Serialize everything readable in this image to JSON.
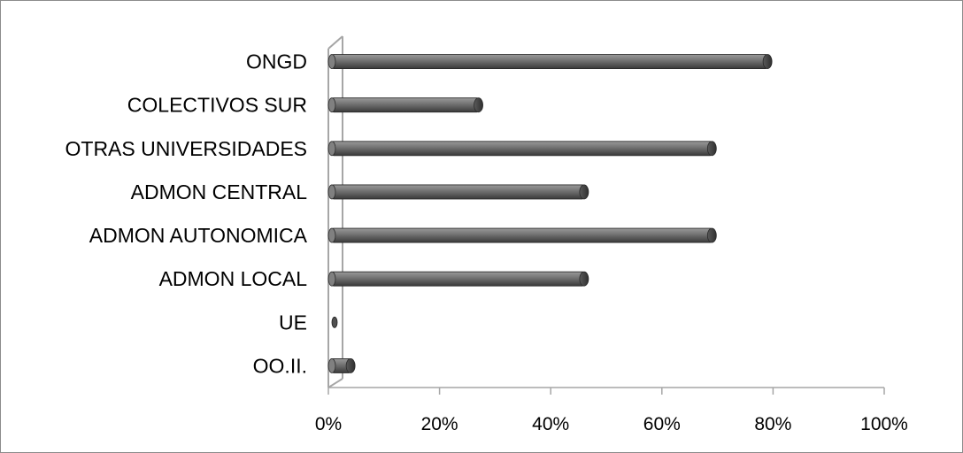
{
  "chart_data": {
    "type": "bar",
    "orientation": "horizontal",
    "style": "3d",
    "categories": [
      "ONGD",
      "COLECTIVOS SUR",
      "OTRAS UNIVERSIDADES",
      "ADMON CENTRAL",
      "ADMON AUTONOMICA",
      "ADMON LOCAL",
      "UE",
      "OO.II."
    ],
    "values": [
      0.79,
      0.27,
      0.69,
      0.46,
      0.69,
      0.46,
      0.0,
      0.04
    ],
    "xlim": [
      0,
      1
    ],
    "x_ticks": [
      0,
      0.2,
      0.4,
      0.6,
      0.8,
      1.0
    ],
    "x_tick_labels": [
      "0%",
      "20%",
      "40%",
      "60%",
      "80%",
      "100%"
    ],
    "grid": false,
    "legend": "none",
    "colors": {
      "bar_fill": "#6e6e6e",
      "bar_highlight": "#a8a8a8",
      "bar_shadow": "#333333",
      "bar_end_cap": "#505050",
      "axis": "#a6a6a6",
      "frame": "#8c8c8c"
    }
  }
}
